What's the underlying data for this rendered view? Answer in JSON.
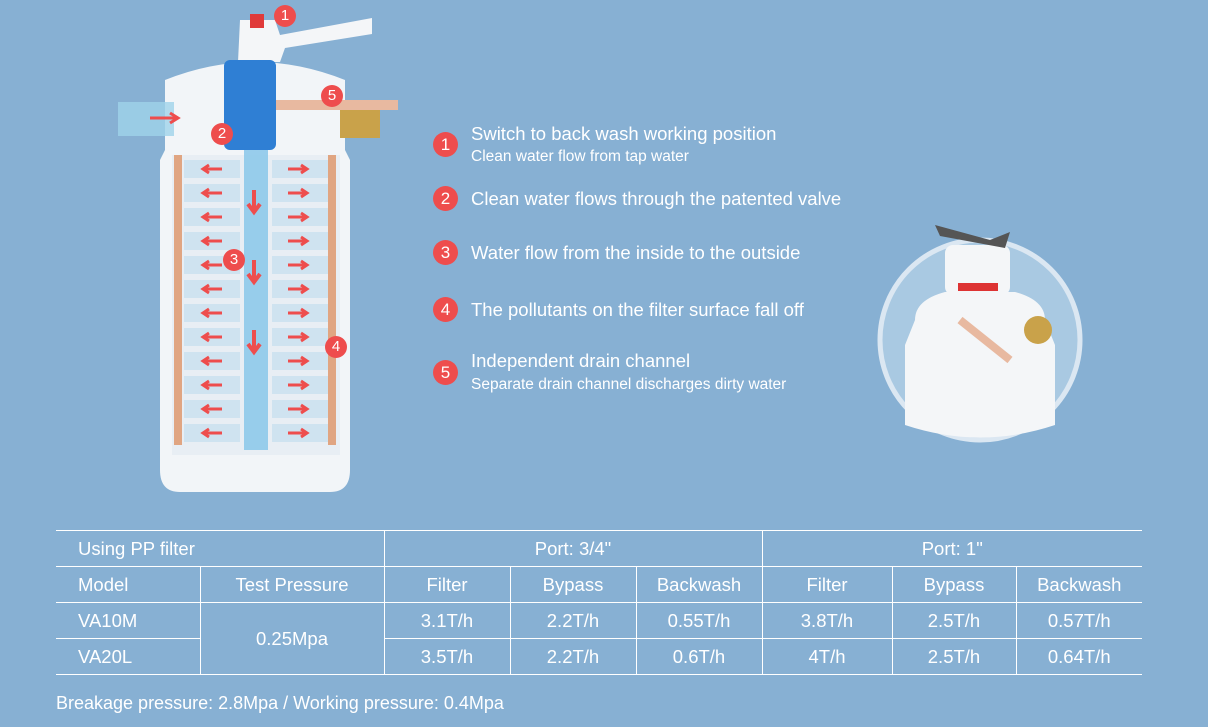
{
  "steps": [
    {
      "number": "1",
      "title": "Switch to back wash working position",
      "subtitle": "Clean water flow from tap water"
    },
    {
      "number": "2",
      "title": "Clean water flows through the patented valve"
    },
    {
      "number": "3",
      "title": "Water flow from the inside to the outside"
    },
    {
      "number": "4",
      "title": "The pollutants on the filter surface fall off"
    },
    {
      "number": "5",
      "title": "Independent drain channel",
      "subtitle": "Separate drain channel discharges dirty water"
    }
  ],
  "table": {
    "rows": [
      [
        "Using PP filter",
        "Port: 3/4\"",
        "Port: 1\""
      ],
      [
        "Model",
        "Test Pressure",
        "Filter",
        "Bypass",
        "Backwash",
        "Filter",
        "Bypass",
        "Backwash"
      ],
      [
        "VA10M",
        "0.25Mpa",
        "3.1T/h",
        "2.2T/h",
        "0.55T/h",
        "3.8T/h",
        "2.5T/h",
        "0.57T/h"
      ],
      [
        "VA20L",
        "3.5T/h",
        "2.2T/h",
        "0.6T/h",
        "4T/h",
        "2.5T/h",
        "0.64T/h"
      ]
    ]
  },
  "footer": "Breakage pressure: 2.8Mpa / Working pressure: 0.4Mpa"
}
